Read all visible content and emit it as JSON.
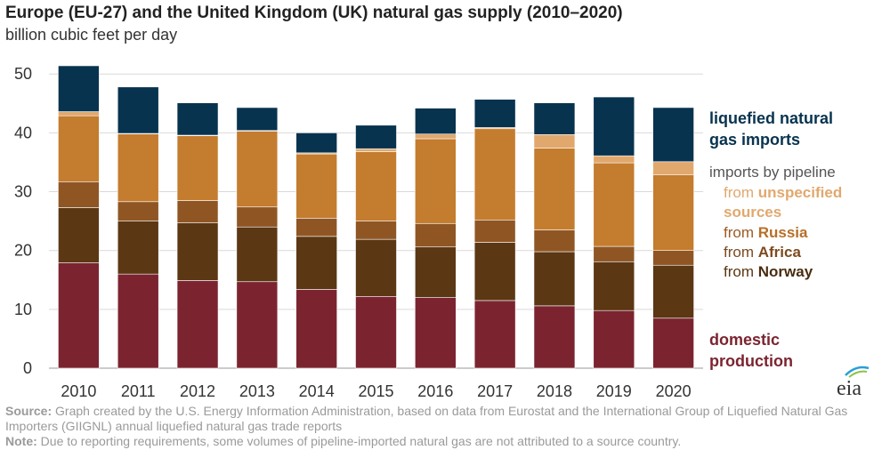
{
  "title": "Europe (EU-27) and the United Kingdom (UK) natural gas supply (2010–2020)",
  "subtitle": "billion cubic feet per day",
  "chart_data": {
    "type": "bar",
    "stacked": true,
    "categories": [
      "2010",
      "2011",
      "2012",
      "2013",
      "2014",
      "2015",
      "2016",
      "2017",
      "2018",
      "2019",
      "2020"
    ],
    "series": [
      {
        "name": "domestic production",
        "color": "#7b2430",
        "values": [
          17.9,
          16.0,
          14.9,
          14.7,
          13.4,
          12.2,
          12.0,
          11.5,
          10.6,
          9.8,
          8.5
        ]
      },
      {
        "name": "from Norway",
        "color": "#5b3714",
        "values": [
          9.4,
          9.0,
          9.8,
          9.3,
          9.0,
          9.7,
          8.6,
          9.9,
          9.2,
          8.3,
          9.0
        ]
      },
      {
        "name": "from Africa",
        "color": "#8f5624",
        "values": [
          4.4,
          3.3,
          3.8,
          3.4,
          3.1,
          3.1,
          4.0,
          3.8,
          3.7,
          2.6,
          2.5
        ]
      },
      {
        "name": "from Russia",
        "color": "#c47c2e",
        "values": [
          11.2,
          11.5,
          11.0,
          12.9,
          10.9,
          11.8,
          14.4,
          15.5,
          13.9,
          14.2,
          12.9
        ]
      },
      {
        "name": "from unspecified sources",
        "color": "#e1a86e",
        "values": [
          0.7,
          0.1,
          0.1,
          0.1,
          0.2,
          0.5,
          0.8,
          0.2,
          2.3,
          1.2,
          2.2
        ]
      },
      {
        "name": "liquefied natural gas imports",
        "color": "#08334f",
        "values": [
          7.8,
          7.9,
          5.5,
          3.9,
          3.4,
          4.0,
          4.4,
          4.8,
          5.4,
          10.0,
          9.2
        ]
      }
    ],
    "ylim": [
      0,
      52
    ],
    "yticks": [
      0,
      10,
      20,
      30,
      40,
      50
    ],
    "ylabel": "billion cubic feet per day",
    "xlabel": ""
  },
  "legend": {
    "lng_line1": "liquefied natural",
    "lng_line2": "gas imports",
    "pipeline_header": "imports by pipeline",
    "from_word": "from",
    "unspecified_line1": "unspecified",
    "unspecified_line2": "sources",
    "russia": "Russia",
    "africa": "Africa",
    "norway": "Norway",
    "domestic_line1": "domestic",
    "domestic_line2": "production"
  },
  "colors": {
    "lng": "#08334f",
    "unspecified": "#e1a86e",
    "russia": "#c47c2e",
    "africa": "#8f5624",
    "norway": "#5b3714",
    "domestic": "#7b2430",
    "pipeline_header": "#555555",
    "from_word": "#9c5a24"
  },
  "footer": {
    "source_label": "Source:",
    "source_text": "Graph created by the U.S. Energy Information Administration, based on data from Eurostat and the International Group of Liquefied Natural Gas Importers (GIIGNL) annual liquefied natural gas trade reports",
    "note_label": "Note:",
    "note_text": "Due to reporting requirements, some volumes of pipeline-imported natural gas are not attributed to a source country."
  },
  "logo_text": "eia"
}
